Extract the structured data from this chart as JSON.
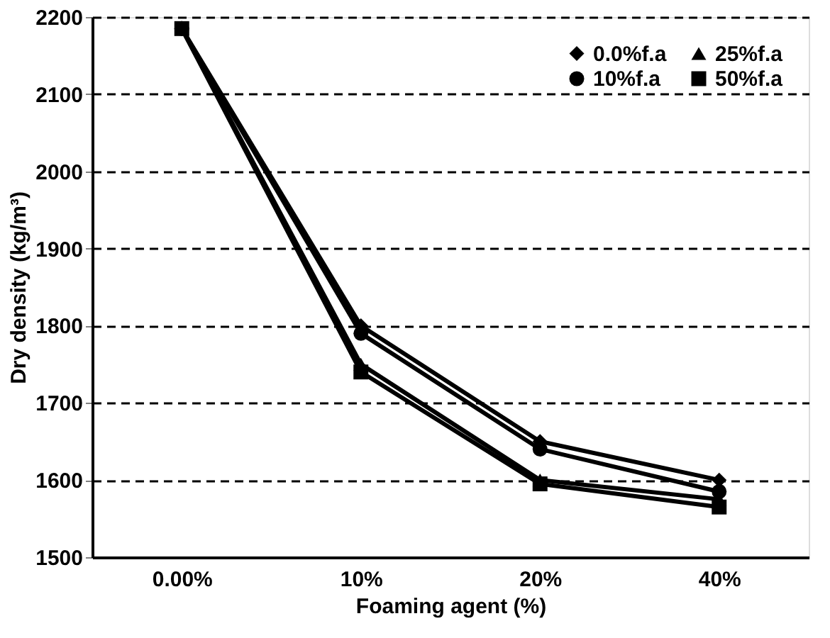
{
  "chart_data": {
    "type": "line",
    "xlabel": "Foaming agent (%)",
    "ylabel": "Dry density (kg/m³)",
    "categories": [
      "0.00%",
      "10%",
      "20%",
      "40%"
    ],
    "ylim": [
      1500,
      2200
    ],
    "yticks": [
      1500,
      1600,
      1700,
      1800,
      1900,
      2000,
      2100,
      2200
    ],
    "grid": "y",
    "legend": "top right",
    "line_style": "solid",
    "series": [
      {
        "name": "0.0%f.a",
        "color": "#000000",
        "marker": "diamond",
        "values": [
          2185,
          1800,
          1650,
          1600
        ]
      },
      {
        "name": "10%f.a",
        "color": "#000000",
        "marker": "circle",
        "values": [
          2185,
          1790,
          1640,
          1585
        ]
      },
      {
        "name": "25%f.a",
        "color": "#000000",
        "marker": "triangle",
        "values": [
          2185,
          1750,
          1600,
          1575
        ]
      },
      {
        "name": "50%f.a",
        "color": "#000000",
        "marker": "square",
        "values": [
          2185,
          1740,
          1595,
          1565
        ]
      }
    ]
  }
}
